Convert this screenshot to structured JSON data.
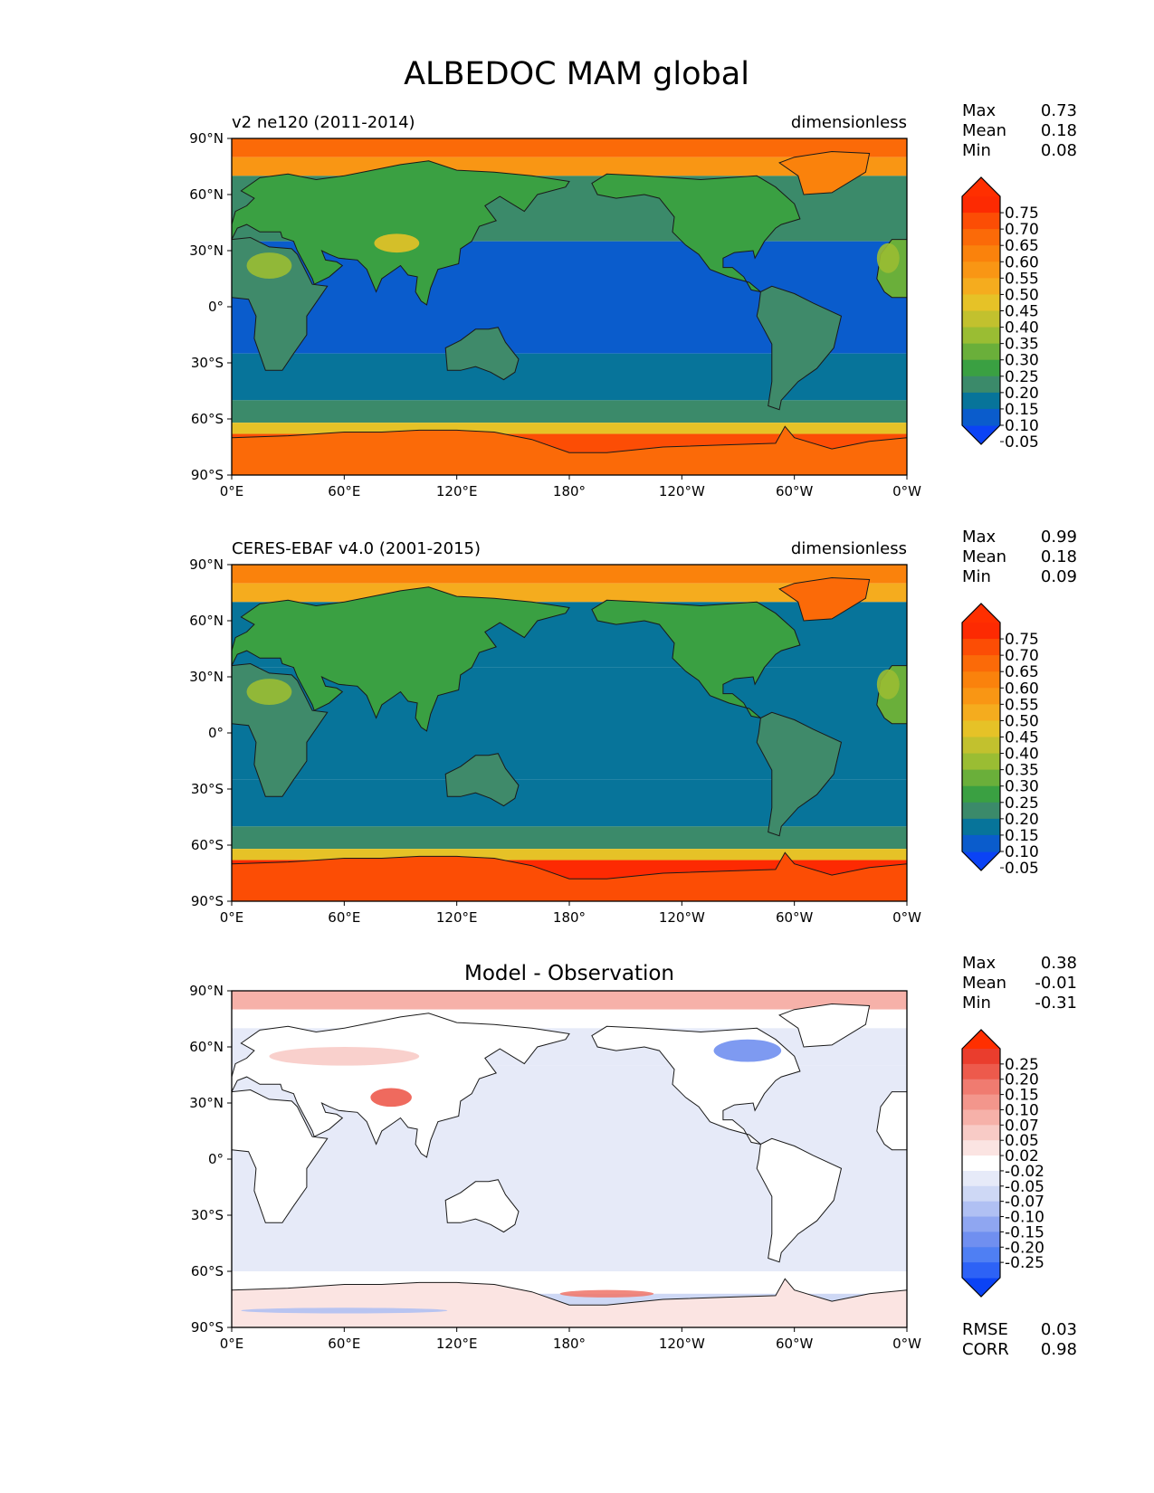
{
  "title": "ALBEDOC MAM global",
  "colors": {
    "ocean_tropical": "#0a5ccc",
    "ocean": "#07749a",
    "land_default": "#3f8a6a",
    "coast": "#1a1a1a",
    "seq": [
      "#0b43f5",
      "#0a5ccc",
      "#07749a",
      "#3b8a6a",
      "#3aa042",
      "#6aaf3a",
      "#9abd33",
      "#c2c12e",
      "#e6c227",
      "#f5ac1e",
      "#f99614",
      "#fa820c",
      "#fb6a08",
      "#fc4d05",
      "#fd2a02",
      "#ff2f00"
    ],
    "div": [
      "#0b43f5",
      "#2d62f6",
      "#4f7ff3",
      "#708ff0",
      "#8fa6f1",
      "#b0c0f3",
      "#ced8f5",
      "#e6eaf8",
      "#ffffff",
      "#fbe4e2",
      "#f8cbc6",
      "#f6b1a9",
      "#f3968c",
      "#f07b70",
      "#ed5a4c",
      "#ea3d2d",
      "#ff2f00"
    ]
  },
  "panels": [
    {
      "left_title": "v2 ne120 (2011-2014)",
      "center_title": "",
      "right_title": "dimensionless",
      "stats_labels": [
        "Max",
        "Mean",
        "Min"
      ],
      "stats_values": [
        "0.73",
        "0.18",
        "0.08"
      ],
      "colorbar_type": "seq",
      "colorbar_ticks": [
        "0.75",
        "0.70",
        "0.65",
        "0.60",
        "0.55",
        "0.50",
        "0.45",
        "0.40",
        "0.35",
        "0.30",
        "0.25",
        "0.20",
        "0.15",
        "0.10",
        "0.05"
      ]
    },
    {
      "left_title": "CERES-EBAF v4.0 (2001-2015)",
      "center_title": "",
      "right_title": "dimensionless",
      "stats_labels": [
        "Max",
        "Mean",
        "Min"
      ],
      "stats_values": [
        "0.99",
        "0.18",
        "0.09"
      ],
      "colorbar_type": "seq",
      "colorbar_ticks": [
        "0.75",
        "0.70",
        "0.65",
        "0.60",
        "0.55",
        "0.50",
        "0.45",
        "0.40",
        "0.35",
        "0.30",
        "0.25",
        "0.20",
        "0.15",
        "0.10",
        "0.05"
      ]
    },
    {
      "left_title": "",
      "center_title": "Model - Observation",
      "right_title": "",
      "stats_labels": [
        "Max",
        "Mean",
        "Min"
      ],
      "stats_values": [
        "0.38",
        "-0.01",
        "-0.31"
      ],
      "colorbar_type": "div",
      "colorbar_ticks": [
        "0.25",
        "0.20",
        "0.15",
        "0.10",
        "0.07",
        "0.05",
        "0.02",
        "-0.02",
        "-0.05",
        "-0.07",
        "-0.10",
        "-0.15",
        "-0.20",
        "-0.25"
      ],
      "metrics_labels": [
        "RMSE",
        "CORR"
      ],
      "metrics_values": [
        "0.03",
        "0.98"
      ]
    }
  ],
  "chart_data": {
    "type": "heatmap",
    "title": "ALBEDOC MAM global",
    "projection": "plate carree, central longitude 180",
    "x_ticks": [
      "0°E",
      "60°E",
      "120°E",
      "180°",
      "120°W",
      "60°W",
      "0°W"
    ],
    "y_ticks": [
      "90°N",
      "60°N",
      "30°N",
      "0°",
      "30°S",
      "60°S",
      "90°S"
    ],
    "xlim": [
      0,
      360
    ],
    "ylim": [
      -90,
      90
    ],
    "panels": [
      {
        "name": "v2 ne120 (2011-2014)",
        "units": "dimensionless",
        "stats": {
          "max": 0.73,
          "mean": 0.18,
          "min": 0.08
        },
        "colorbar_levels": [
          0.05,
          0.1,
          0.15,
          0.2,
          0.25,
          0.3,
          0.35,
          0.4,
          0.45,
          0.5,
          0.55,
          0.6,
          0.65,
          0.7,
          0.75
        ],
        "zonal_bands": [
          {
            "lat": [
              80,
              90
            ],
            "value": 0.62
          },
          {
            "lat": [
              70,
              80
            ],
            "value": 0.5
          },
          {
            "lat": [
              35,
              70
            ],
            "value": 0.15
          },
          {
            "lat": [
              -25,
              35
            ],
            "value": 0.08
          },
          {
            "lat": [
              -50,
              -25
            ],
            "value": 0.13
          },
          {
            "lat": [
              -62,
              -50
            ],
            "value": 0.17
          },
          {
            "lat": [
              -68,
              -62
            ],
            "value": 0.4
          },
          {
            "lat": [
              -90,
              -68
            ],
            "value": 0.65
          }
        ]
      },
      {
        "name": "CERES-EBAF v4.0 (2001-2015)",
        "units": "dimensionless",
        "stats": {
          "max": 0.99,
          "mean": 0.18,
          "min": 0.09
        },
        "colorbar_levels": [
          0.05,
          0.1,
          0.15,
          0.2,
          0.25,
          0.3,
          0.35,
          0.4,
          0.45,
          0.5,
          0.55,
          0.6,
          0.65,
          0.7,
          0.75
        ],
        "zonal_bands": [
          {
            "lat": [
              80,
              90
            ],
            "value": 0.57
          },
          {
            "lat": [
              70,
              80
            ],
            "value": 0.45
          },
          {
            "lat": [
              35,
              70
            ],
            "value": 0.14
          },
          {
            "lat": [
              -25,
              35
            ],
            "value": 0.13
          },
          {
            "lat": [
              -50,
              -25
            ],
            "value": 0.13
          },
          {
            "lat": [
              -62,
              -50
            ],
            "value": 0.18
          },
          {
            "lat": [
              -68,
              -62
            ],
            "value": 0.42
          },
          {
            "lat": [
              -90,
              -68
            ],
            "value": 0.7
          }
        ]
      },
      {
        "name": "Model - Observation",
        "stats": {
          "max": 0.38,
          "mean": -0.01,
          "min": -0.31
        },
        "metrics": {
          "rmse": 0.03,
          "corr": 0.98
        },
        "colorbar_levels": [
          -0.25,
          -0.2,
          -0.15,
          -0.1,
          -0.07,
          -0.05,
          -0.02,
          0.02,
          0.05,
          0.07,
          0.1,
          0.15,
          0.2,
          0.25
        ],
        "zonal_bands": [
          {
            "lat": [
              80,
              90
            ],
            "value": 0.1
          },
          {
            "lat": [
              70,
              80
            ],
            "value": 0.04
          },
          {
            "lat": [
              50,
              70
            ],
            "value": 0.0
          },
          {
            "lat": [
              -60,
              50
            ],
            "value": 0.0
          },
          {
            "lat": [
              -72,
              -60
            ],
            "value": 0.03
          },
          {
            "lat": [
              -86,
              -72
            ],
            "value": -0.05
          },
          {
            "lat": [
              -90,
              -86
            ],
            "value": -0.25
          }
        ]
      }
    ]
  }
}
